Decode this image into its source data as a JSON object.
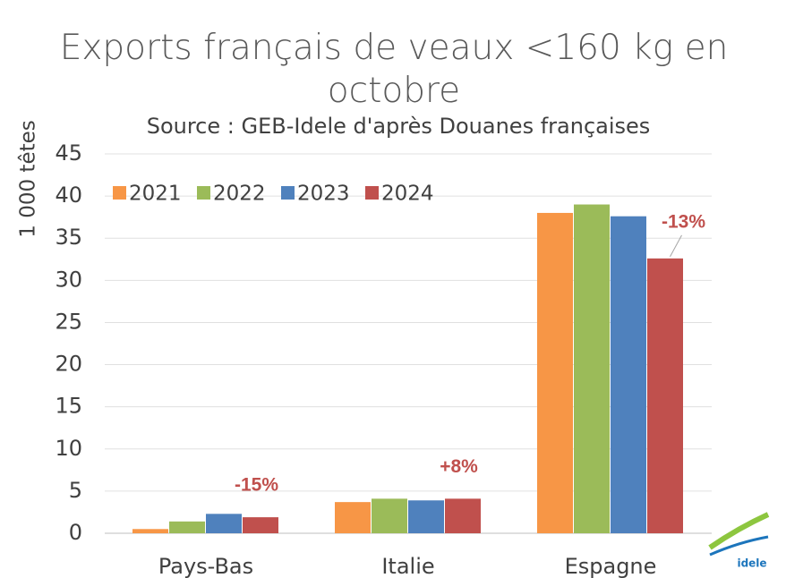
{
  "chart_data": {
    "type": "bar",
    "title": "Exports français de veaux <160 kg en octobre",
    "subtitle": "Source : GEB-Idele d'après Douanes françaises",
    "y_label": "1 000 têtes",
    "categories": [
      "Pays-Bas",
      "Italie",
      "Espagne"
    ],
    "series": [
      {
        "name": "2021",
        "color": "#f79646",
        "values": [
          0.5,
          3.7,
          38.0
        ]
      },
      {
        "name": "2022",
        "color": "#9bbb59",
        "values": [
          1.4,
          4.1,
          39.0
        ]
      },
      {
        "name": "2023",
        "color": "#4f81bd",
        "values": [
          2.3,
          3.9,
          37.6
        ]
      },
      {
        "name": "2024",
        "color": "#c0504d",
        "values": [
          1.9,
          4.1,
          32.6
        ]
      }
    ],
    "annotations": [
      {
        "category": "Pays-Bas",
        "text": "-15%"
      },
      {
        "category": "Italie",
        "text": "+8%"
      },
      {
        "category": "Espagne",
        "text": "-13%"
      }
    ],
    "ylim": [
      0,
      45
    ],
    "yticks": [
      0,
      5,
      10,
      15,
      20,
      25,
      30,
      35,
      40,
      45
    ],
    "grid": true,
    "legend": "top-left",
    "logo_text": "idele"
  }
}
